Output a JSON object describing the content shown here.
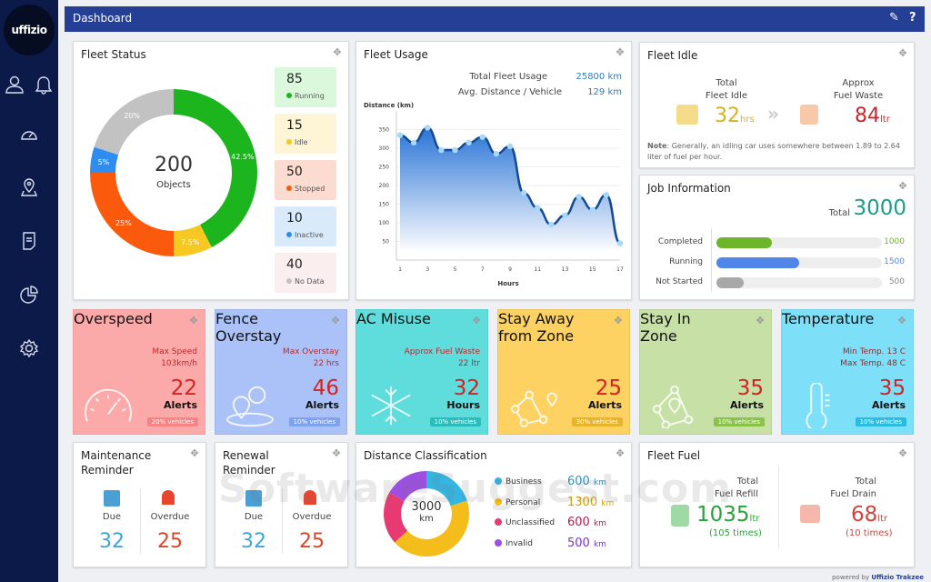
{
  "app": {
    "logo": "uffizio",
    "page_title": "Dashboard",
    "footer_prefix": "powered by",
    "footer_brand": "Uffizio Trakzee",
    "watermark": "SoftwareSuggest.com"
  },
  "topbar": {
    "edit_icon": "pencil-icon",
    "help_label": "?"
  },
  "sidebar": {
    "items": [
      {
        "name": "user-icon"
      },
      {
        "name": "bell-icon"
      },
      {
        "name": "speedometer-icon"
      },
      {
        "name": "map-pin-icon"
      },
      {
        "name": "document-icon"
      },
      {
        "name": "pie-chart-icon"
      },
      {
        "name": "gear-icon"
      }
    ]
  },
  "fleet_status": {
    "title": "Fleet Status",
    "total": "200",
    "total_label": "Objects",
    "items": [
      {
        "count": "85",
        "label": "Running",
        "pct": "42.5%",
        "color": "#1db51d",
        "bg": "#dcf8dc"
      },
      {
        "count": "15",
        "label": "Idle",
        "pct": "7.5%",
        "color": "#f6c821",
        "bg": "#fdf5d6"
      },
      {
        "count": "50",
        "label": "Stopped",
        "pct": "25%",
        "color": "#fb5a0c",
        "bg": "#fcdcd0"
      },
      {
        "count": "10",
        "label": "Inactive",
        "pct": "5%",
        "color": "#2f8df0",
        "bg": "#d9ebfb"
      },
      {
        "count": "40",
        "label": "No Data",
        "pct": "20%",
        "color": "#c2c2c2",
        "bg": "#fbeeee"
      }
    ]
  },
  "fleet_usage": {
    "title": "Fleet Usage",
    "total_label": "Total Fleet Usage",
    "total_value": "25800 km",
    "avg_label": "Avg. Distance / Vehicle",
    "avg_value": "129 km"
  },
  "chart_data": {
    "type": "area",
    "title": "Fleet Usage",
    "xlabel": "Hours",
    "ylabel": "Distance (km)",
    "x": [
      1,
      2,
      3,
      4,
      5,
      6,
      7,
      8,
      9,
      10,
      11,
      12,
      13,
      14,
      15,
      16,
      17
    ],
    "values": [
      335,
      315,
      355,
      295,
      295,
      315,
      330,
      285,
      305,
      180,
      140,
      95,
      120,
      170,
      135,
      175,
      45
    ],
    "xticks": [
      1,
      3,
      5,
      7,
      9,
      11,
      13,
      15,
      17
    ],
    "yticks": [
      50,
      100,
      150,
      200,
      250,
      300,
      350
    ],
    "ylim": [
      0,
      400
    ],
    "grid": true
  },
  "fleet_idle": {
    "title": "Fleet Idle",
    "idle_label_1": "Total",
    "idle_label_2": "Fleet Idle",
    "idle_value": "32",
    "idle_unit": "hrs",
    "waste_label_1": "Approx",
    "waste_label_2": "Fuel Waste",
    "waste_value": "84",
    "waste_unit": "ltr",
    "note_bold": "Note",
    "note": ": Generally, an idling car uses somewhere between 1.89 to 2.64 liter of fuel per hour."
  },
  "job_info": {
    "title": "Job Information",
    "total_label": "Total",
    "total_value": "3000",
    "rows": [
      {
        "label": "Completed",
        "value": "1000",
        "fraction": 0.333,
        "color": "#6fb52c"
      },
      {
        "label": "Running",
        "value": "1500",
        "fraction": 0.5,
        "color": "#4f86e8"
      },
      {
        "label": "Not Started",
        "value": "500",
        "fraction": 0.167,
        "color": "#a8a8a8"
      }
    ]
  },
  "alerts": [
    {
      "title": "Overspeed",
      "sub1": "Max Speed",
      "sub2": "103km/h",
      "value": "22",
      "unit": "Alerts",
      "pct": "20% vehicles",
      "bg": "#fba9a9",
      "badge": "#f78484",
      "icon": "speedometer-icon"
    },
    {
      "title": "Fence Overstay",
      "sub1": "Max Overstay",
      "sub2": "22 hrs",
      "value": "46",
      "unit": "Alerts",
      "pct": "10% vehicles",
      "bg": "#aac2f8",
      "badge": "#7fa2ef",
      "icon": "geofence-icon"
    },
    {
      "title": "AC Misuse",
      "sub1": "Approx Fuel Waste",
      "sub2": "22 ltr",
      "value": "32",
      "unit": "Hours",
      "pct": "10% vehicles",
      "bg": "#5fdcdc",
      "badge": "#2bbcbc",
      "icon": "snowflake-icon"
    },
    {
      "title": "Stay Away from Zone",
      "sub1": "",
      "sub2": "",
      "value": "25",
      "unit": "Alerts",
      "pct": "30% vehicles",
      "bg": "#fdd162",
      "badge": "#e8b52a",
      "icon": "zone-icon"
    },
    {
      "title": "Stay In Zone",
      "sub1": "",
      "sub2": "",
      "value": "35",
      "unit": "Alerts",
      "pct": "10% vehicles",
      "bg": "#c7e0a6",
      "badge": "#8bc34a",
      "icon": "zone-pin-icon"
    },
    {
      "title": "Temperature",
      "sub1": "Min Temp. 13 C",
      "sub2": "Max Temp. 48 C",
      "value": "35",
      "unit": "Alerts",
      "pct": "10% vehicles",
      "bg": "#7ddff8",
      "badge": "#28bde0",
      "icon": "thermometer-icon"
    }
  ],
  "reminders": [
    {
      "title": "Maintenance Reminder",
      "due_label": "Due",
      "due": "32",
      "overdue_label": "Overdue",
      "overdue": "25"
    },
    {
      "title": "Renewal Reminder",
      "due_label": "Due",
      "due": "32",
      "overdue_label": "Overdue",
      "overdue": "25"
    }
  ],
  "distance_class": {
    "title": "Distance Classification",
    "total": "3000",
    "unit": "km",
    "items": [
      {
        "label": "Business",
        "value": "600",
        "unit": "km",
        "color": "#33b7e2"
      },
      {
        "label": "Personal",
        "value": "1300",
        "unit": "km",
        "color": "#f4bd1b"
      },
      {
        "label": "Unclassified",
        "value": "600",
        "unit": "km",
        "color": "#e83a72"
      },
      {
        "label": "Invalid",
        "value": "500",
        "unit": "km",
        "color": "#9c4fe0"
      }
    ]
  },
  "fleet_fuel": {
    "title": "Fleet Fuel",
    "refill_l1": "Total",
    "refill_l2": "Fuel Refill",
    "refill_value": "1035",
    "refill_unit": "ltr",
    "refill_times": "(105 times)",
    "drain_l1": "Total",
    "drain_l2": "Fuel Drain",
    "drain_value": "68",
    "drain_unit": "ltr",
    "drain_times": "(10 times)"
  }
}
